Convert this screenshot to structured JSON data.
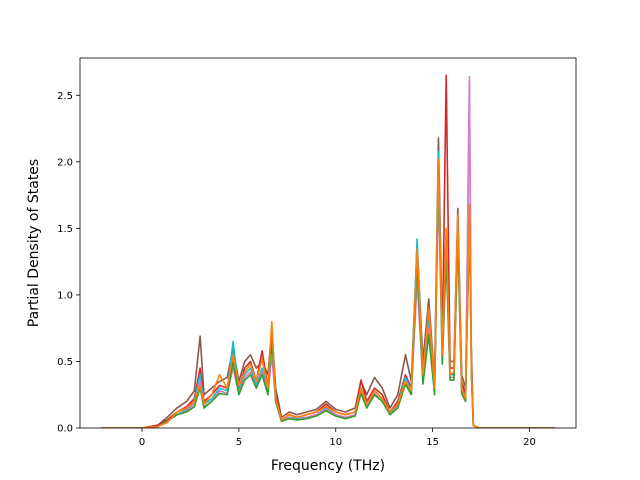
{
  "chart_data": {
    "type": "line",
    "xlabel": "Frequency (THz)",
    "ylabel": "Partial Density of States",
    "xlim": [
      -3.2,
      22.4
    ],
    "ylim": [
      0.0,
      2.78
    ],
    "x_ticks": [
      0,
      5,
      10,
      15,
      20
    ],
    "y_ticks": [
      0.0,
      0.5,
      1.0,
      1.5,
      2.0,
      2.5
    ],
    "x_tick_labels": [
      "0",
      "5",
      "10",
      "15",
      "20"
    ],
    "y_tick_labels": [
      "0.0",
      "0.5",
      "1.0",
      "1.5",
      "2.0",
      "2.5"
    ],
    "grid": false,
    "legend": "none",
    "series": [
      {
        "color": "#8c564b",
        "x": [
          -2.1,
          0,
          0.8,
          1.3,
          1.8,
          2.3,
          2.7,
          3.0,
          3.2,
          3.6,
          4.0,
          4.4,
          4.7,
          5.0,
          5.3,
          5.6,
          5.9,
          6.2,
          6.5,
          6.7,
          6.9,
          7.2,
          7.6,
          8.0,
          8.5,
          9.0,
          9.5,
          10.0,
          10.5,
          11.0,
          11.3,
          11.6,
          12.0,
          12.4,
          12.8,
          13.2,
          13.6,
          13.9,
          14.2,
          14.5,
          14.8,
          15.1,
          15.3,
          15.5,
          15.7,
          15.9,
          16.1,
          16.3,
          16.5,
          16.7,
          16.9,
          17.0,
          17.1,
          17.4,
          18,
          21.3
        ],
        "y": [
          0,
          0,
          0.02,
          0.08,
          0.15,
          0.2,
          0.28,
          0.69,
          0.25,
          0.3,
          0.35,
          0.38,
          0.6,
          0.35,
          0.5,
          0.55,
          0.45,
          0.5,
          0.4,
          0.75,
          0.3,
          0.08,
          0.12,
          0.1,
          0.12,
          0.14,
          0.2,
          0.14,
          0.12,
          0.15,
          0.35,
          0.25,
          0.38,
          0.3,
          0.15,
          0.25,
          0.55,
          0.35,
          1.38,
          0.5,
          0.97,
          0.35,
          2.18,
          0.7,
          1.45,
          0.5,
          0.5,
          1.65,
          0.4,
          0.3,
          1.5,
          0.6,
          0.02,
          0,
          0,
          0
        ]
      },
      {
        "color": "#d62728",
        "x": [
          -2.1,
          0,
          0.8,
          1.3,
          1.8,
          2.3,
          2.7,
          3.0,
          3.2,
          3.6,
          4.0,
          4.4,
          4.7,
          5.0,
          5.3,
          5.6,
          5.9,
          6.2,
          6.5,
          6.7,
          6.9,
          7.2,
          7.6,
          8.0,
          8.5,
          9.0,
          9.5,
          10.0,
          10.5,
          11.0,
          11.3,
          11.6,
          12.0,
          12.4,
          12.8,
          13.2,
          13.6,
          13.9,
          14.2,
          14.5,
          14.8,
          15.1,
          15.3,
          15.5,
          15.7,
          15.9,
          16.1,
          16.3,
          16.5,
          16.7,
          16.9,
          17.0,
          17.1,
          17.4,
          18,
          21.3
        ],
        "y": [
          0,
          0,
          0.02,
          0.06,
          0.12,
          0.16,
          0.22,
          0.45,
          0.2,
          0.25,
          0.32,
          0.3,
          0.5,
          0.3,
          0.45,
          0.5,
          0.35,
          0.58,
          0.3,
          0.6,
          0.25,
          0.06,
          0.1,
          0.08,
          0.1,
          0.12,
          0.18,
          0.12,
          0.1,
          0.12,
          0.36,
          0.2,
          0.3,
          0.25,
          0.12,
          0.2,
          0.4,
          0.3,
          1.2,
          0.4,
          0.85,
          0.3,
          1.9,
          0.6,
          2.65,
          0.45,
          0.45,
          1.5,
          0.35,
          0.25,
          1.6,
          0.5,
          0.02,
          0,
          0,
          0
        ]
      },
      {
        "color": "#17becf",
        "x": [
          -2.1,
          0,
          0.8,
          1.3,
          1.8,
          2.3,
          2.7,
          3.0,
          3.2,
          3.6,
          4.0,
          4.4,
          4.7,
          5.0,
          5.3,
          5.6,
          5.9,
          6.2,
          6.5,
          6.7,
          6.9,
          7.2,
          7.6,
          8.0,
          8.5,
          9.0,
          9.5,
          10.0,
          10.5,
          11.0,
          11.3,
          11.6,
          12.0,
          12.4,
          12.8,
          13.2,
          13.6,
          13.9,
          14.2,
          14.5,
          14.8,
          15.1,
          15.3,
          15.5,
          15.7,
          15.9,
          16.1,
          16.3,
          16.5,
          16.7,
          16.9,
          17.0,
          17.1,
          17.4,
          18,
          21.3
        ],
        "y": [
          0,
          0,
          0.01,
          0.05,
          0.1,
          0.14,
          0.2,
          0.4,
          0.18,
          0.22,
          0.3,
          0.28,
          0.65,
          0.28,
          0.4,
          0.45,
          0.32,
          0.45,
          0.28,
          0.78,
          0.22,
          0.05,
          0.08,
          0.07,
          0.08,
          0.1,
          0.15,
          0.1,
          0.08,
          0.1,
          0.3,
          0.18,
          0.28,
          0.22,
          0.1,
          0.18,
          0.38,
          0.28,
          1.42,
          0.38,
          0.8,
          0.28,
          2.08,
          0.55,
          1.4,
          0.4,
          0.4,
          1.55,
          0.3,
          0.22,
          2.6,
          0.45,
          0.02,
          0,
          0,
          0
        ]
      },
      {
        "color": "#e377c2",
        "x": [
          -2.1,
          0,
          0.8,
          1.3,
          1.8,
          2.3,
          2.7,
          3.0,
          3.2,
          3.6,
          4.0,
          4.4,
          4.7,
          5.0,
          5.3,
          5.6,
          5.9,
          6.2,
          6.5,
          6.7,
          6.9,
          7.2,
          7.6,
          8.0,
          8.5,
          9.0,
          9.5,
          10.0,
          10.5,
          11.0,
          11.3,
          11.6,
          12.0,
          12.4,
          12.8,
          13.2,
          13.6,
          13.9,
          14.2,
          14.5,
          14.8,
          15.1,
          15.3,
          15.5,
          15.7,
          15.9,
          16.1,
          16.3,
          16.5,
          16.7,
          16.9,
          17.0,
          17.1,
          17.4,
          18,
          21.3
        ],
        "y": [
          0,
          0,
          0.01,
          0.05,
          0.1,
          0.13,
          0.18,
          0.35,
          0.16,
          0.2,
          0.28,
          0.26,
          0.45,
          0.26,
          0.38,
          0.42,
          0.3,
          0.42,
          0.26,
          0.55,
          0.2,
          0.05,
          0.08,
          0.06,
          0.08,
          0.1,
          0.14,
          0.1,
          0.08,
          0.1,
          0.28,
          0.16,
          0.26,
          0.2,
          0.1,
          0.16,
          0.35,
          0.26,
          1.1,
          0.35,
          0.75,
          0.26,
          1.8,
          0.5,
          1.3,
          0.38,
          0.38,
          1.4,
          0.28,
          0.2,
          2.64,
          0.42,
          0.02,
          0,
          0,
          0
        ]
      },
      {
        "color": "#2ca02c",
        "x": [
          -2.1,
          0,
          0.8,
          1.3,
          1.8,
          2.3,
          2.7,
          3.0,
          3.2,
          3.6,
          4.0,
          4.4,
          4.7,
          5.0,
          5.3,
          5.6,
          5.9,
          6.2,
          6.5,
          6.7,
          6.9,
          7.2,
          7.6,
          8.0,
          8.5,
          9.0,
          9.5,
          10.0,
          10.5,
          11.0,
          11.3,
          11.6,
          12.0,
          12.4,
          12.8,
          13.2,
          13.6,
          13.9,
          14.2,
          14.5,
          14.8,
          15.1,
          15.3,
          15.5,
          15.7,
          15.9,
          16.1,
          16.3,
          16.5,
          16.7,
          16.9,
          17.0,
          17.1,
          17.4,
          18,
          21.3
        ],
        "y": [
          0,
          0,
          0.01,
          0.05,
          0.1,
          0.12,
          0.16,
          0.3,
          0.15,
          0.2,
          0.26,
          0.25,
          0.5,
          0.25,
          0.36,
          0.4,
          0.3,
          0.4,
          0.25,
          0.7,
          0.2,
          0.05,
          0.07,
          0.06,
          0.07,
          0.09,
          0.13,
          0.09,
          0.07,
          0.09,
          0.26,
          0.15,
          0.25,
          0.2,
          0.1,
          0.15,
          0.33,
          0.25,
          1.25,
          0.33,
          0.7,
          0.25,
          1.95,
          0.48,
          1.3,
          0.36,
          0.36,
          1.45,
          0.26,
          0.2,
          1.62,
          0.4,
          0.02,
          0,
          0,
          0
        ]
      },
      {
        "color": "#ff7f0e",
        "x": [
          -2.1,
          0,
          0.8,
          1.3,
          1.8,
          2.3,
          2.7,
          3.0,
          3.2,
          3.6,
          4.0,
          4.4,
          4.7,
          5.0,
          5.3,
          5.6,
          5.9,
          6.2,
          6.5,
          6.7,
          6.9,
          7.2,
          7.6,
          8.0,
          8.5,
          9.0,
          9.5,
          10.0,
          10.5,
          11.0,
          11.3,
          11.6,
          12.0,
          12.4,
          12.8,
          13.2,
          13.6,
          13.9,
          14.2,
          14.5,
          14.8,
          15.1,
          15.3,
          15.5,
          15.7,
          15.9,
          16.1,
          16.3,
          16.5,
          16.7,
          16.9,
          17.0,
          17.1,
          17.4,
          18,
          21.3
        ],
        "y": [
          0,
          0,
          0.01,
          0.04,
          0.12,
          0.15,
          0.2,
          0.32,
          0.18,
          0.25,
          0.4,
          0.3,
          0.55,
          0.32,
          0.42,
          0.48,
          0.35,
          0.52,
          0.3,
          0.8,
          0.22,
          0.06,
          0.1,
          0.08,
          0.1,
          0.12,
          0.16,
          0.12,
          0.1,
          0.12,
          0.3,
          0.18,
          0.28,
          0.22,
          0.12,
          0.18,
          0.35,
          0.28,
          1.35,
          0.4,
          0.9,
          0.3,
          2.02,
          0.55,
          1.5,
          0.4,
          0.42,
          1.6,
          0.3,
          0.22,
          1.68,
          0.45,
          0.02,
          0,
          0,
          0
        ]
      }
    ]
  }
}
